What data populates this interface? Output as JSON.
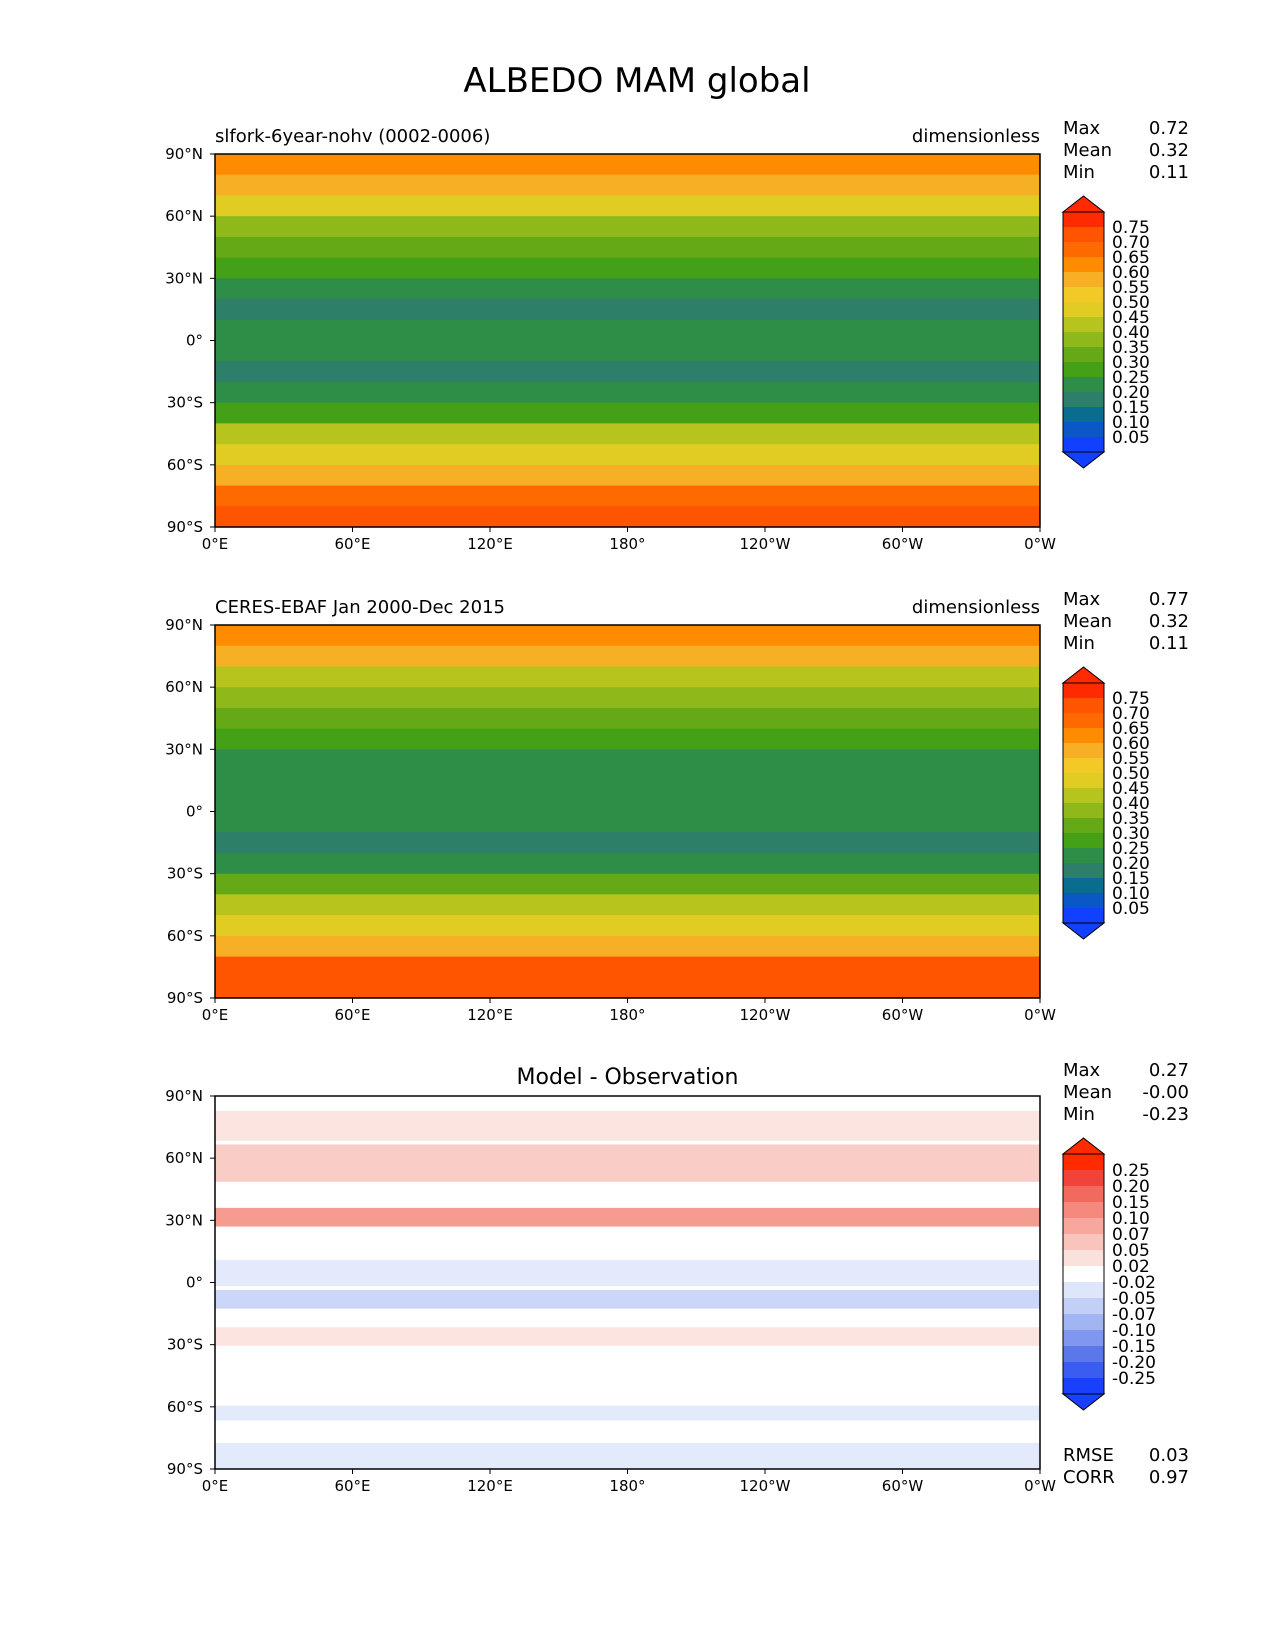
{
  "title": "ALBEDO MAM global",
  "ticks": {
    "x": [
      "0°E",
      "60°E",
      "120°E",
      "180°",
      "120°W",
      "60°W",
      "0°W"
    ],
    "y": [
      "90°N",
      "60°N",
      "30°N",
      "0°",
      "30°S",
      "60°S",
      "90°S"
    ]
  },
  "panels": [
    {
      "left_title": "slfork-6year-nohv (0002-0006)",
      "center_title": "",
      "right_title": "dimensionless",
      "stats": [
        {
          "label": "Max",
          "value": "0.72"
        },
        {
          "label": "Mean",
          "value": "0.32"
        },
        {
          "label": "Min",
          "value": "0.11"
        }
      ],
      "colorbar": {
        "labels": [
          "0.75",
          "0.70",
          "0.65",
          "0.60",
          "0.55",
          "0.50",
          "0.45",
          "0.40",
          "0.35",
          "0.30",
          "0.25",
          "0.20",
          "0.15",
          "0.10",
          "0.05"
        ],
        "colors": [
          "#ff2a00",
          "#ff5500",
          "#ff6a00",
          "#ff8c00",
          "#f7b026",
          "#f2c926",
          "#e0cc23",
          "#b8c41e",
          "#8fb91a",
          "#65a917",
          "#43a017",
          "#2e8d47",
          "#2e7f6a",
          "#0a6c8e",
          "#0a58c8",
          "#1240ff"
        ],
        "under_color": "#1240ff",
        "over_color": "#ff2a00"
      },
      "footer": []
    },
    {
      "left_title": "CERES-EBAF Jan 2000-Dec 2015",
      "center_title": "",
      "right_title": "dimensionless",
      "stats": [
        {
          "label": "Max",
          "value": "0.77"
        },
        {
          "label": "Mean",
          "value": "0.32"
        },
        {
          "label": "Min",
          "value": "0.11"
        }
      ],
      "colorbar": {
        "labels": [
          "0.75",
          "0.70",
          "0.65",
          "0.60",
          "0.55",
          "0.50",
          "0.45",
          "0.40",
          "0.35",
          "0.30",
          "0.25",
          "0.20",
          "0.15",
          "0.10",
          "0.05"
        ],
        "colors": [
          "#ff2a00",
          "#ff5500",
          "#ff6a00",
          "#ff8c00",
          "#f7b026",
          "#f2c926",
          "#e0cc23",
          "#b8c41e",
          "#8fb91a",
          "#65a917",
          "#43a017",
          "#2e8d47",
          "#2e7f6a",
          "#0a6c8e",
          "#0a58c8",
          "#1240ff"
        ],
        "under_color": "#1240ff",
        "over_color": "#ff2a00"
      },
      "footer": []
    },
    {
      "left_title": "",
      "center_title": "Model - Observation",
      "right_title": "",
      "stats": [
        {
          "label": "Max",
          "value": "0.27"
        },
        {
          "label": "Mean",
          "value": "-0.00"
        },
        {
          "label": "Min",
          "value": "-0.23"
        }
      ],
      "colorbar": {
        "labels": [
          "0.25",
          "0.20",
          "0.15",
          "0.10",
          "0.07",
          "0.05",
          "0.02",
          "-0.02",
          "-0.05",
          "-0.07",
          "-0.10",
          "-0.15",
          "-0.20",
          "-0.25"
        ],
        "colors": [
          "#ff2a00",
          "#f0433a",
          "#f26a5e",
          "#f5897d",
          "#f7a79c",
          "#f8c4bc",
          "#fbe1dc",
          "#ffffff",
          "#dde6fb",
          "#c2cff7",
          "#a2b5f3",
          "#7f97ee",
          "#5b78ea",
          "#3a5cf0",
          "#1a40ff"
        ],
        "under_color": "#1a40ff",
        "over_color": "#ff2a00"
      },
      "footer": [
        {
          "label": "RMSE",
          "value": "0.03"
        },
        {
          "label": "CORR",
          "value": "0.97"
        }
      ]
    }
  ],
  "chart_data": [
    {
      "type": "heatmap",
      "title": "slfork-6year-nohv (0002-0006)",
      "units": "dimensionless",
      "x_ticks": [
        "0°E",
        "60°E",
        "120°E",
        "180°",
        "120°W",
        "60°W",
        "0°W"
      ],
      "y_ticks": [
        "90°N",
        "60°N",
        "30°N",
        "0°",
        "30°S",
        "60°S",
        "90°S"
      ],
      "xlim": [
        0,
        360
      ],
      "ylim": [
        -90,
        90
      ],
      "levels": [
        0.05,
        0.1,
        0.15,
        0.2,
        0.25,
        0.3,
        0.35,
        0.4,
        0.45,
        0.5,
        0.55,
        0.6,
        0.65,
        0.7,
        0.75
      ],
      "stats": {
        "max": 0.72,
        "mean": 0.32,
        "min": 0.11
      },
      "zonal_mean_lat": [
        85,
        75,
        65,
        55,
        45,
        35,
        25,
        15,
        5,
        -5,
        -15,
        -25,
        -35,
        -45,
        -55,
        -65,
        -75,
        -85
      ],
      "zonal_mean_values": [
        0.62,
        0.55,
        0.45,
        0.38,
        0.33,
        0.27,
        0.2,
        0.18,
        0.22,
        0.21,
        0.19,
        0.21,
        0.29,
        0.4,
        0.46,
        0.55,
        0.68,
        0.7
      ]
    },
    {
      "type": "heatmap",
      "title": "CERES-EBAF Jan 2000-Dec 2015",
      "units": "dimensionless",
      "x_ticks": [
        "0°E",
        "60°E",
        "120°E",
        "180°",
        "120°W",
        "60°W",
        "0°W"
      ],
      "y_ticks": [
        "90°N",
        "60°N",
        "30°N",
        "0°",
        "30°S",
        "60°S",
        "90°S"
      ],
      "xlim": [
        0,
        360
      ],
      "ylim": [
        -90,
        90
      ],
      "levels": [
        0.05,
        0.1,
        0.15,
        0.2,
        0.25,
        0.3,
        0.35,
        0.4,
        0.45,
        0.5,
        0.55,
        0.6,
        0.65,
        0.7,
        0.75
      ],
      "stats": {
        "max": 0.77,
        "mean": 0.32,
        "min": 0.11
      },
      "zonal_mean_lat": [
        85,
        75,
        65,
        55,
        45,
        35,
        25,
        15,
        5,
        -5,
        -15,
        -25,
        -35,
        -45,
        -55,
        -65,
        -75,
        -85
      ],
      "zonal_mean_values": [
        0.63,
        0.55,
        0.42,
        0.36,
        0.32,
        0.26,
        0.22,
        0.2,
        0.22,
        0.2,
        0.19,
        0.22,
        0.3,
        0.4,
        0.48,
        0.58,
        0.7,
        0.72
      ]
    },
    {
      "type": "heatmap",
      "title": "Model - Observation",
      "x_ticks": [
        "0°E",
        "60°E",
        "120°E",
        "180°",
        "120°W",
        "60°W",
        "0°W"
      ],
      "y_ticks": [
        "90°N",
        "60°N",
        "30°N",
        "0°",
        "30°S",
        "60°S",
        "90°S"
      ],
      "xlim": [
        0,
        360
      ],
      "ylim": [
        -90,
        90
      ],
      "levels": [
        -0.25,
        -0.2,
        -0.15,
        -0.1,
        -0.07,
        -0.05,
        -0.02,
        0.02,
        0.05,
        0.07,
        0.1,
        0.15,
        0.2,
        0.25
      ],
      "stats": {
        "max": 0.27,
        "mean": -0.0,
        "min": -0.23
      },
      "rmse": 0.03,
      "corr": 0.97
    }
  ]
}
